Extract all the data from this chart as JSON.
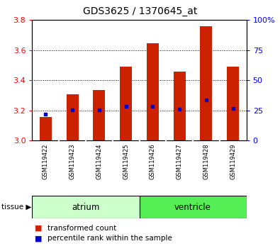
{
  "title": "GDS3625 / 1370645_at",
  "samples": [
    "GSM119422",
    "GSM119423",
    "GSM119424",
    "GSM119425",
    "GSM119426",
    "GSM119427",
    "GSM119428",
    "GSM119429"
  ],
  "transformed_count": [
    3.155,
    3.305,
    3.335,
    3.49,
    3.645,
    3.46,
    3.76,
    3.49
  ],
  "percentile_rank": [
    3.175,
    3.205,
    3.205,
    3.225,
    3.225,
    3.21,
    3.27,
    3.215
  ],
  "bar_bottom": 3.0,
  "ylim_left": [
    3.0,
    3.8
  ],
  "ylim_right": [
    0,
    100
  ],
  "yticks_left": [
    3.0,
    3.2,
    3.4,
    3.6,
    3.8
  ],
  "yticks_right": [
    0,
    25,
    50,
    75,
    100
  ],
  "ytick_labels_right": [
    "0",
    "25",
    "50",
    "75",
    "100%"
  ],
  "groups": [
    {
      "label": "atrium",
      "start": 0,
      "end": 3,
      "color": "#ccffcc"
    },
    {
      "label": "ventricle",
      "start": 4,
      "end": 7,
      "color": "#55ee55"
    }
  ],
  "bar_color": "#cc2200",
  "dot_color": "#0000cc",
  "bar_width": 0.45,
  "label_area_color": "#cccccc",
  "tissue_label": "tissue",
  "legend_items": [
    {
      "label": "transformed count",
      "color": "#cc2200"
    },
    {
      "label": "percentile rank within the sample",
      "color": "#0000cc"
    }
  ]
}
